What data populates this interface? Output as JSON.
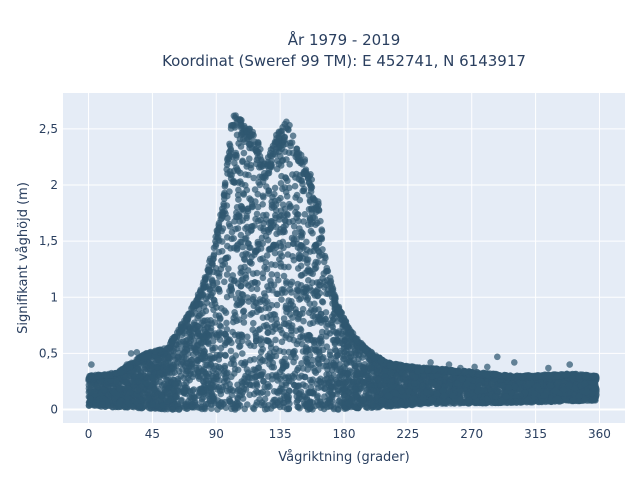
{
  "chart_data": {
    "type": "scatter",
    "title_line1": "År 1979 - 2019",
    "title_line2": "Koordinat (Sweref 99 TM): E 452741, N 6143917",
    "xlabel": "Vågriktning (grader)",
    "ylabel": "Signifikant våghöjd (m)",
    "xlim": [
      -18,
      378
    ],
    "ylim": [
      -0.12,
      2.82
    ],
    "xticks": [
      0,
      45,
      90,
      135,
      180,
      225,
      270,
      315,
      360
    ],
    "xtick_labels": [
      "0",
      "45",
      "90",
      "135",
      "180",
      "225",
      "270",
      "315",
      "360"
    ],
    "yticks": [
      0,
      0.5,
      1,
      1.5,
      2,
      2.5
    ],
    "ytick_labels": [
      "0",
      "0,5",
      "1",
      "1,5",
      "2",
      "2,5"
    ],
    "grid": true,
    "legend": "none",
    "marker_color": "#2f5870",
    "upper_envelope": [
      {
        "x": 0,
        "y": 0.3
      },
      {
        "x": 20,
        "y": 0.33
      },
      {
        "x": 40,
        "y": 0.5
      },
      {
        "x": 55,
        "y": 0.55
      },
      {
        "x": 70,
        "y": 0.85
      },
      {
        "x": 80,
        "y": 1.1
      },
      {
        "x": 88,
        "y": 1.45
      },
      {
        "x": 95,
        "y": 1.9
      },
      {
        "x": 100,
        "y": 2.5
      },
      {
        "x": 103,
        "y": 2.68
      },
      {
        "x": 110,
        "y": 2.55
      },
      {
        "x": 118,
        "y": 2.45
      },
      {
        "x": 125,
        "y": 2.2
      },
      {
        "x": 132,
        "y": 2.45
      },
      {
        "x": 140,
        "y": 2.58
      },
      {
        "x": 148,
        "y": 2.35
      },
      {
        "x": 155,
        "y": 2.2
      },
      {
        "x": 162,
        "y": 1.85
      },
      {
        "x": 168,
        "y": 1.3
      },
      {
        "x": 175,
        "y": 0.95
      },
      {
        "x": 185,
        "y": 0.7
      },
      {
        "x": 195,
        "y": 0.55
      },
      {
        "x": 210,
        "y": 0.42
      },
      {
        "x": 230,
        "y": 0.38
      },
      {
        "x": 260,
        "y": 0.35
      },
      {
        "x": 300,
        "y": 0.3
      },
      {
        "x": 340,
        "y": 0.32
      },
      {
        "x": 358,
        "y": 0.3
      }
    ],
    "lower_envelope": [
      {
        "x": 0,
        "y": 0.03
      },
      {
        "x": 60,
        "y": 0.0
      },
      {
        "x": 120,
        "y": 0.0
      },
      {
        "x": 180,
        "y": 0.0
      },
      {
        "x": 240,
        "y": 0.05
      },
      {
        "x": 300,
        "y": 0.06
      },
      {
        "x": 358,
        "y": 0.08
      }
    ],
    "outliers": [
      {
        "x": 2,
        "y": 0.4
      },
      {
        "x": 27,
        "y": 0.4
      },
      {
        "x": 30,
        "y": 0.5
      },
      {
        "x": 34,
        "y": 0.51
      },
      {
        "x": 41,
        "y": 0.47
      },
      {
        "x": 49,
        "y": 0.45
      },
      {
        "x": 220,
        "y": 0.38
      },
      {
        "x": 232,
        "y": 0.34
      },
      {
        "x": 241,
        "y": 0.42
      },
      {
        "x": 254,
        "y": 0.4
      },
      {
        "x": 262,
        "y": 0.37
      },
      {
        "x": 272,
        "y": 0.38
      },
      {
        "x": 281,
        "y": 0.38
      },
      {
        "x": 288,
        "y": 0.47
      },
      {
        "x": 300,
        "y": 0.42
      },
      {
        "x": 324,
        "y": 0.37
      },
      {
        "x": 339,
        "y": 0.4
      },
      {
        "x": 341,
        "y": 0.28
      },
      {
        "x": 356,
        "y": 0.3
      }
    ]
  }
}
